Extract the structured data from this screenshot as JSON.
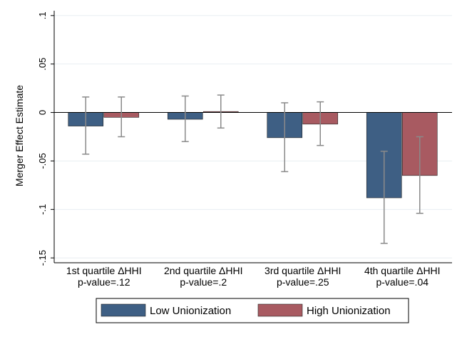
{
  "chart_data": {
    "type": "bar",
    "ylabel": "Merger Effect Estimate",
    "ylim": [
      -0.155,
      0.105
    ],
    "yticks": [
      0.1,
      0.05,
      0,
      -0.05,
      -0.1,
      -0.15
    ],
    "ytick_labels": [
      ".1",
      ".05",
      "0",
      "-.05",
      "-.1",
      "-.15"
    ],
    "categories": [
      {
        "name": "1st quartile ΔHHI",
        "sub": "p-value=.12"
      },
      {
        "name": "2nd quartile ΔHHI",
        "sub": "p-value=.2"
      },
      {
        "name": "3rd quartile ΔHHI",
        "sub": "p-value=.25"
      },
      {
        "name": "4th quartile ΔHHI",
        "sub": "p-value=.04"
      }
    ],
    "series": [
      {
        "name": "Low Unionization",
        "color": "#3e5f84",
        "values": [
          -0.014,
          -0.007,
          -0.026,
          -0.088
        ],
        "ci_low": [
          -0.043,
          -0.03,
          -0.061,
          -0.135
        ],
        "ci_high": [
          0.016,
          0.017,
          0.01,
          -0.04
        ]
      },
      {
        "name": "High Unionization",
        "color": "#a85a61",
        "values": [
          -0.005,
          0.001,
          -0.012,
          -0.065
        ],
        "ci_low": [
          -0.025,
          -0.016,
          -0.034,
          -0.104
        ],
        "ci_high": [
          0.016,
          0.018,
          0.011,
          -0.025
        ]
      }
    ],
    "grid": true,
    "legend": "bottom"
  }
}
